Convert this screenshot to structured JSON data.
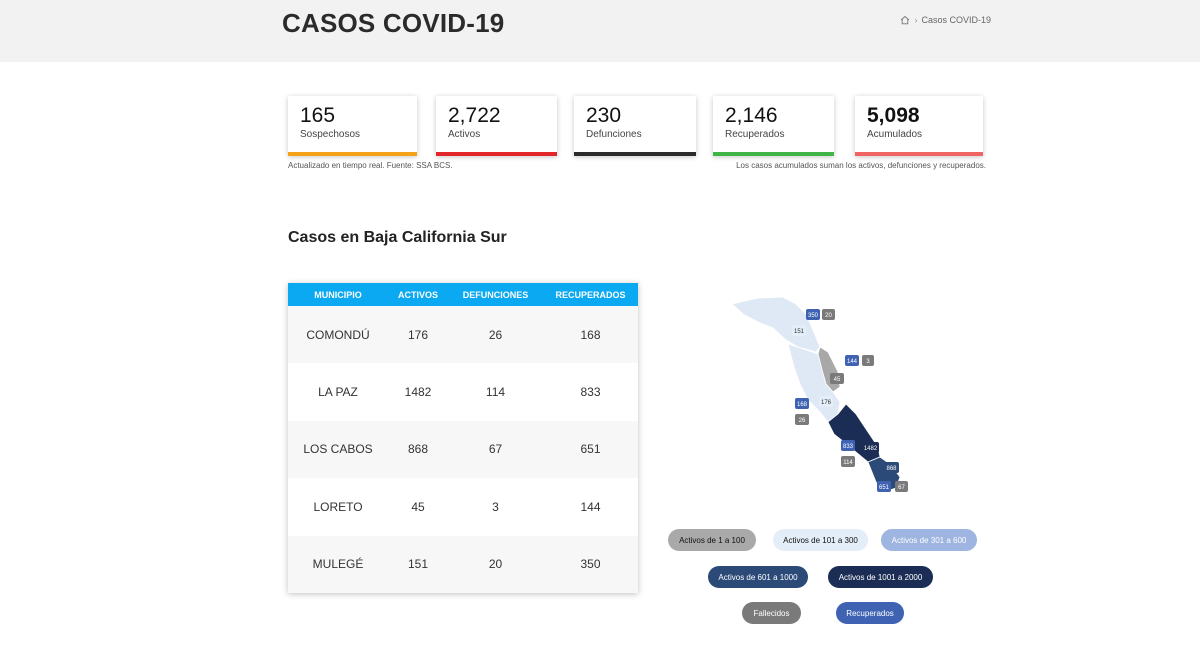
{
  "header": {
    "title": "CASOS COVID-19",
    "breadcrumb": "Casos COVID-19"
  },
  "cards": [
    {
      "value": "165",
      "label": "Sospechosos",
      "color": "#f5a21b"
    },
    {
      "value": "2,722",
      "label": "Activos",
      "color": "#e3262b"
    },
    {
      "value": "230",
      "label": "Defunciones",
      "color": "#2b2b2b"
    },
    {
      "value": "2,146",
      "label": "Recuperados",
      "color": "#3fb548"
    },
    {
      "value": "5,098",
      "label": "Acumulados",
      "color": "#f06464"
    }
  ],
  "notes": {
    "left": "Actualizado en tiempo real. Fuente: SSA BCS.",
    "right": "Los casos acumulados suman los activos, defunciones y recuperados."
  },
  "section_title": "Casos en Baja California Sur",
  "table": {
    "headers": [
      "MUNICIPIO",
      "ACTIVOS",
      "DEFUNCIONES",
      "RECUPERADOS"
    ],
    "rows": [
      [
        "COMONDÚ",
        "176",
        "26",
        "168"
      ],
      [
        "LA PAZ",
        "1482",
        "114",
        "833"
      ],
      [
        "LOS CABOS",
        "868",
        "67",
        "651"
      ],
      [
        "LORETO",
        "45",
        "3",
        "144"
      ],
      [
        "MULEGÉ",
        "151",
        "20",
        "350"
      ]
    ]
  },
  "map_labels": [
    "350",
    "20",
    "151",
    "144",
    "3",
    "45",
    "168",
    "176",
    "26",
    "833",
    "1482",
    "114",
    "868",
    "651",
    "67"
  ],
  "legend": [
    {
      "label": "Activos de 1 a 100",
      "bg": "#a9a9a9",
      "fg": "#111111"
    },
    {
      "label": "Activos de 101 a 300",
      "bg": "#e4eef8",
      "fg": "#111111"
    },
    {
      "label": "Activos de 301 a 600",
      "bg": "#9db5e0",
      "fg": "#ffffff"
    },
    {
      "label": "Activos de 601 a 1000",
      "bg": "#2b4a78",
      "fg": "#ffffff"
    },
    {
      "label": "Activos de 1001 a 2000",
      "bg": "#1c2d55",
      "fg": "#ffffff"
    },
    {
      "label": "Fallecidos",
      "bg": "#7a7a7a",
      "fg": "#ffffff"
    },
    {
      "label": "Recuperados",
      "bg": "#3f63b2",
      "fg": "#ffffff"
    }
  ]
}
